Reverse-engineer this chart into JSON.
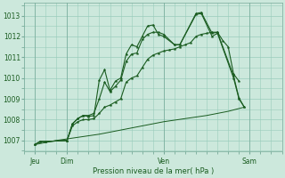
{
  "background_color": "#cce8dc",
  "grid_color": "#99ccbb",
  "line_color": "#1a5c20",
  "xlabel": "Pression niveau de la mer( hPa )",
  "ylim": [
    1006.5,
    1013.6
  ],
  "yticks": [
    1007,
    1008,
    1009,
    1010,
    1011,
    1012,
    1013
  ],
  "xlim": [
    0,
    24
  ],
  "xtick_positions": [
    1,
    4,
    13,
    21
  ],
  "xtick_labels": [
    "Jeu",
    "Dim",
    "Ven",
    "Sam"
  ],
  "vline_positions": [
    1,
    4,
    13,
    21
  ],
  "series1": [
    [
      1,
      1006.8
    ],
    [
      1.5,
      1006.95
    ],
    [
      2.0,
      1006.95
    ],
    [
      4.0,
      1007.0
    ],
    [
      4.5,
      1007.8
    ],
    [
      5.0,
      1008.05
    ],
    [
      5.5,
      1008.2
    ],
    [
      6.0,
      1008.15
    ],
    [
      6.5,
      1008.2
    ],
    [
      7.0,
      1009.9
    ],
    [
      7.5,
      1010.4
    ],
    [
      8.0,
      1009.4
    ],
    [
      8.5,
      1009.85
    ],
    [
      9.0,
      1010.0
    ],
    [
      9.5,
      1011.15
    ],
    [
      10.0,
      1011.6
    ],
    [
      10.5,
      1011.5
    ],
    [
      11.0,
      1012.0
    ],
    [
      11.5,
      1012.5
    ],
    [
      12.0,
      1012.55
    ],
    [
      12.5,
      1012.1
    ],
    [
      13.0,
      1012.0
    ],
    [
      14.0,
      1011.6
    ],
    [
      14.5,
      1011.6
    ],
    [
      16.0,
      1013.1
    ],
    [
      16.5,
      1013.15
    ],
    [
      17.5,
      1012.15
    ],
    [
      18.0,
      1012.2
    ],
    [
      19.5,
      1010.1
    ],
    [
      20.0,
      1009.05
    ],
    [
      20.5,
      1008.6
    ]
  ],
  "series2": [
    [
      1,
      1006.8
    ],
    [
      1.5,
      1006.95
    ],
    [
      2.0,
      1006.95
    ],
    [
      4.0,
      1007.0
    ],
    [
      4.5,
      1007.8
    ],
    [
      5.0,
      1008.05
    ],
    [
      5.5,
      1008.2
    ],
    [
      6.0,
      1008.2
    ],
    [
      6.5,
      1008.3
    ],
    [
      7.0,
      1009.0
    ],
    [
      7.5,
      1009.8
    ],
    [
      8.0,
      1009.35
    ],
    [
      8.5,
      1009.6
    ],
    [
      9.0,
      1009.9
    ],
    [
      9.5,
      1010.8
    ],
    [
      10.0,
      1011.15
    ],
    [
      10.5,
      1011.2
    ],
    [
      11.0,
      1011.85
    ],
    [
      11.5,
      1012.1
    ],
    [
      12.0,
      1012.2
    ],
    [
      12.5,
      1012.2
    ],
    [
      13.0,
      1012.1
    ],
    [
      14.0,
      1011.6
    ],
    [
      14.5,
      1011.6
    ],
    [
      16.0,
      1013.05
    ],
    [
      16.5,
      1013.1
    ],
    [
      17.5,
      1012.0
    ],
    [
      18.0,
      1012.15
    ],
    [
      19.5,
      1010.0
    ],
    [
      20.0,
      1009.0
    ],
    [
      20.5,
      1008.6
    ]
  ],
  "series3": [
    [
      1,
      1006.8
    ],
    [
      1.5,
      1006.95
    ],
    [
      2.0,
      1006.95
    ],
    [
      4.0,
      1007.0
    ],
    [
      4.5,
      1007.7
    ],
    [
      5.0,
      1007.9
    ],
    [
      5.5,
      1008.0
    ],
    [
      6.0,
      1008.0
    ],
    [
      6.5,
      1008.05
    ],
    [
      7.0,
      1008.3
    ],
    [
      7.5,
      1008.6
    ],
    [
      8.0,
      1008.7
    ],
    [
      8.5,
      1008.85
    ],
    [
      9.0,
      1009.0
    ],
    [
      9.5,
      1009.8
    ],
    [
      10.0,
      1010.0
    ],
    [
      10.5,
      1010.1
    ],
    [
      11.0,
      1010.5
    ],
    [
      11.5,
      1010.9
    ],
    [
      12.0,
      1011.1
    ],
    [
      12.5,
      1011.2
    ],
    [
      13.0,
      1011.3
    ],
    [
      13.5,
      1011.35
    ],
    [
      14.0,
      1011.4
    ],
    [
      14.5,
      1011.5
    ],
    [
      15.0,
      1011.6
    ],
    [
      15.5,
      1011.7
    ],
    [
      16.0,
      1012.0
    ],
    [
      16.5,
      1012.1
    ],
    [
      17.0,
      1012.15
    ],
    [
      17.5,
      1012.2
    ],
    [
      18.0,
      1012.2
    ],
    [
      18.5,
      1011.8
    ],
    [
      19.0,
      1011.5
    ],
    [
      19.5,
      1010.2
    ],
    [
      20.0,
      1009.85
    ]
  ],
  "series4_flat": [
    [
      1,
      1006.8
    ],
    [
      3,
      1007.0
    ],
    [
      5,
      1007.15
    ],
    [
      7,
      1007.3
    ],
    [
      9,
      1007.5
    ],
    [
      11,
      1007.7
    ],
    [
      13,
      1007.9
    ],
    [
      15,
      1008.05
    ],
    [
      17,
      1008.2
    ],
    [
      19,
      1008.4
    ],
    [
      20.5,
      1008.6
    ]
  ]
}
